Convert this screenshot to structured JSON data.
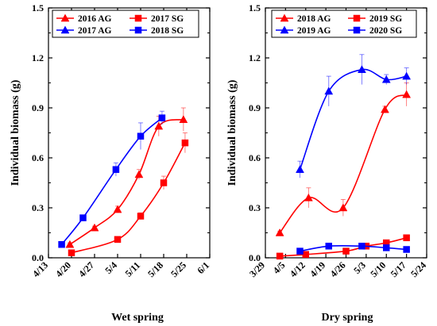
{
  "chart_data": [
    {
      "type": "scatter",
      "xlabel": "Wet spring",
      "ylabel": "Individual biomass (g)",
      "ylim": [
        0,
        1.5
      ],
      "yticks": [
        "0.0",
        "0.3",
        "0.6",
        "0.9",
        "1.2",
        "1.5"
      ],
      "xlim": [
        0,
        49
      ],
      "xticks": [
        {
          "label": "4/13",
          "pos": 0
        },
        {
          "label": "4/20",
          "pos": 7
        },
        {
          "label": "4/27",
          "pos": 14
        },
        {
          "label": "5/4",
          "pos": 21
        },
        {
          "label": "5/11",
          "pos": 28
        },
        {
          "label": "5/18",
          "pos": 35
        },
        {
          "label": "5/25",
          "pos": 42
        },
        {
          "label": "6/1",
          "pos": 49
        }
      ],
      "legend_position": "top",
      "series": [
        {
          "name": "2016 AG",
          "color": "#ff0000",
          "marker": "triangle",
          "points": [
            [
              6.5,
              0.08
            ],
            [
              14,
              0.18
            ],
            [
              21,
              0.29
            ],
            [
              27.5,
              0.5
            ],
            [
              33.5,
              0.79
            ],
            [
              41,
              0.83
            ]
          ],
          "errors": [
            0.01,
            0.01,
            0.02,
            0.03,
            0.06,
            0.07
          ]
        },
        {
          "name": "2017 SG",
          "color": "#ff0000",
          "marker": "square",
          "points": [
            [
              7,
              0.03
            ],
            [
              21,
              0.11
            ],
            [
              28,
              0.25
            ],
            [
              35,
              0.45
            ],
            [
              41.5,
              0.69
            ]
          ],
          "errors": [
            0.005,
            0.01,
            0.02,
            0.04,
            0.06
          ]
        },
        {
          "name": "2017 AG",
          "color": "#0000ff",
          "marker": "triangle",
          "points": [],
          "errors": []
        },
        {
          "name": "2018 SG",
          "color": "#0000ff",
          "marker": "square",
          "points": [
            [
              4,
              0.08
            ],
            [
              10.5,
              0.24
            ],
            [
              20.5,
              0.53
            ],
            [
              28,
              0.73
            ],
            [
              34.5,
              0.84
            ]
          ],
          "errors": [
            0.005,
            0.015,
            0.04,
            0.08,
            0.04
          ]
        }
      ]
    },
    {
      "type": "scatter",
      "xlabel": "Dry spring",
      "ylabel": "Individual biomass (g)",
      "ylim": [
        0,
        1.5
      ],
      "yticks": [
        "0.0",
        "0.3",
        "0.6",
        "0.9",
        "1.2",
        "1.5"
      ],
      "xlim": [
        0,
        56
      ],
      "xticks": [
        {
          "label": "3/29",
          "pos": 0
        },
        {
          "label": "4/5",
          "pos": 7
        },
        {
          "label": "4/12",
          "pos": 14
        },
        {
          "label": "4/19",
          "pos": 21
        },
        {
          "label": "4/26",
          "pos": 28
        },
        {
          "label": "5/3",
          "pos": 35
        },
        {
          "label": "5/10",
          "pos": 42
        },
        {
          "label": "5/17",
          "pos": 49
        },
        {
          "label": "5/24",
          "pos": 56
        }
      ],
      "legend_position": "top",
      "series": [
        {
          "name": "2018 AG",
          "color": "#ff0000",
          "marker": "triangle",
          "points": [
            [
              5,
              0.15
            ],
            [
              15,
              0.36
            ],
            [
              27,
              0.3
            ],
            [
              41.5,
              0.89
            ],
            [
              49,
              0.98
            ]
          ],
          "errors": [
            0.01,
            0.06,
            0.05,
            0.02,
            0.07
          ]
        },
        {
          "name": "2019 SG",
          "color": "#ff0000",
          "marker": "square",
          "points": [
            [
              5,
              0.01
            ],
            [
              14,
              0.02
            ],
            [
              28,
              0.04
            ],
            [
              35,
              0.07
            ],
            [
              42,
              0.09
            ],
            [
              49,
              0.12
            ]
          ],
          "errors": [
            0.003,
            0.005,
            0.01,
            0.01,
            0.01,
            0.015
          ]
        },
        {
          "name": "2019 AG",
          "color": "#0000ff",
          "marker": "triangle",
          "points": [
            [
              12,
              0.53
            ],
            [
              22,
              1.0
            ],
            [
              33.5,
              1.13
            ],
            [
              42,
              1.07
            ],
            [
              49,
              1.09
            ]
          ],
          "errors": [
            0.05,
            0.09,
            0.09,
            0.03,
            0.05
          ]
        },
        {
          "name": "2020 SG",
          "color": "#0000ff",
          "marker": "square",
          "points": [
            [
              12,
              0.04
            ],
            [
              22,
              0.07
            ],
            [
              33.5,
              0.07
            ],
            [
              42,
              0.06
            ],
            [
              49,
              0.05
            ]
          ],
          "errors": [
            0.005,
            0.01,
            0.01,
            0.005,
            0.005
          ]
        }
      ]
    }
  ]
}
